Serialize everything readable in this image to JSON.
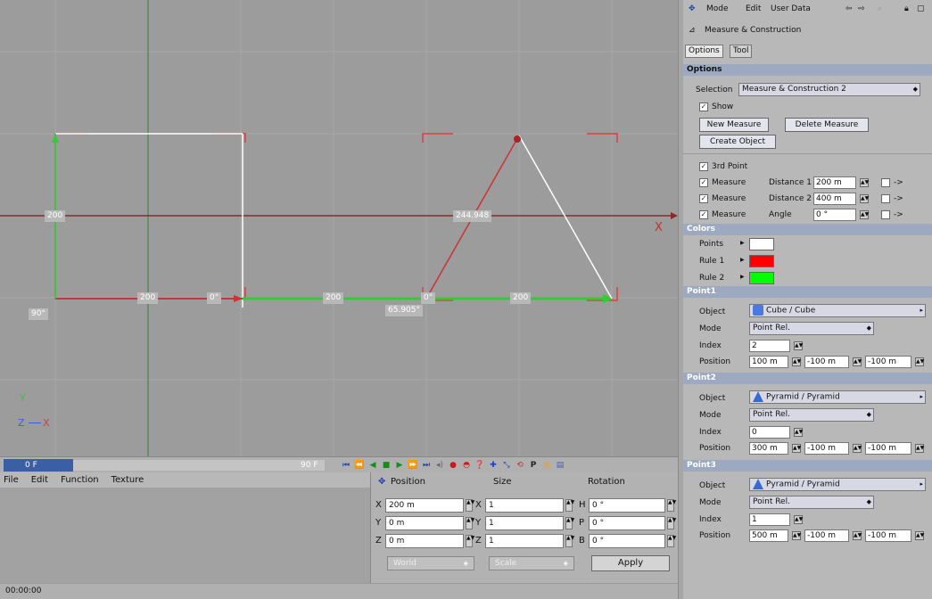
{
  "viewport": {
    "labels": [
      "200",
      "200",
      "0°",
      "200",
      "65.905°",
      "0°",
      "200",
      "244.948",
      "90°"
    ],
    "axis_y": "Y",
    "axis_z": "Z",
    "axis_x": "X",
    "x_marker": "X"
  },
  "timeline": {
    "start": "0 F",
    "end": "90 F"
  },
  "lower": {
    "menu": [
      "File",
      "Edit",
      "Function",
      "Texture"
    ],
    "timecode": "00:00:00"
  },
  "coord": {
    "position_header": "Position",
    "size_header": "Size",
    "rotation_header": "Rotation",
    "pos": [
      {
        "axis": "X",
        "value": "200 m"
      },
      {
        "axis": "Y",
        "value": "0 m"
      },
      {
        "axis": "Z",
        "value": "0 m"
      }
    ],
    "size": [
      {
        "axis": "X",
        "value": "1"
      },
      {
        "axis": "Y",
        "value": "1"
      },
      {
        "axis": "Z",
        "value": "1"
      }
    ],
    "rot": [
      {
        "axis": "H",
        "value": "0 °"
      },
      {
        "axis": "P",
        "value": "0 °"
      },
      {
        "axis": "B",
        "value": "0 °"
      }
    ],
    "world": "World",
    "scale": "Scale",
    "apply": "Apply"
  },
  "panel": {
    "menu": [
      "Mode",
      "Edit",
      "User Data"
    ],
    "title": "Measure & Construction",
    "tabs": [
      "Options",
      "Tool"
    ],
    "options_header": "Options",
    "selection_label": "Selection",
    "selection_value": "Measure & Construction 2",
    "show_label": "Show",
    "new_measure": "New Measure",
    "delete_measure": "Delete Measure",
    "create_object": "Create Object",
    "third_point": "3rd Point",
    "measures": [
      {
        "label": "Measure",
        "name": "Distance 1",
        "value": "200 m"
      },
      {
        "label": "Measure",
        "name": "Distance 2",
        "value": "400 m"
      },
      {
        "label": "Measure",
        "name": "Angle",
        "value": "0 °"
      }
    ],
    "colors_header": "Colors",
    "colors": [
      {
        "label": "Points",
        "color": "#ffffff"
      },
      {
        "label": "Rule 1",
        "color": "#ff0000"
      },
      {
        "label": "Rule 2",
        "color": "#00ff00"
      }
    ],
    "points": [
      {
        "header": "Point1",
        "object": "Cube / Cube",
        "mode": "Point Rel.",
        "index": "2",
        "pos": [
          "100 m",
          "-100 m",
          "-100 m"
        ],
        "icon": "cube"
      },
      {
        "header": "Point2",
        "object": "Pyramid / Pyramid",
        "mode": "Point Rel.",
        "index": "0",
        "pos": [
          "300 m",
          "-100 m",
          "-100 m"
        ],
        "icon": "pyramid"
      },
      {
        "header": "Point3",
        "object": "Pyramid / Pyramid",
        "mode": "Point Rel.",
        "index": "1",
        "pos": [
          "500 m",
          "-100 m",
          "-100 m"
        ],
        "icon": "pyramid"
      }
    ],
    "labels": {
      "object": "Object",
      "mode": "Mode",
      "index": "Index",
      "position": "Position"
    }
  }
}
